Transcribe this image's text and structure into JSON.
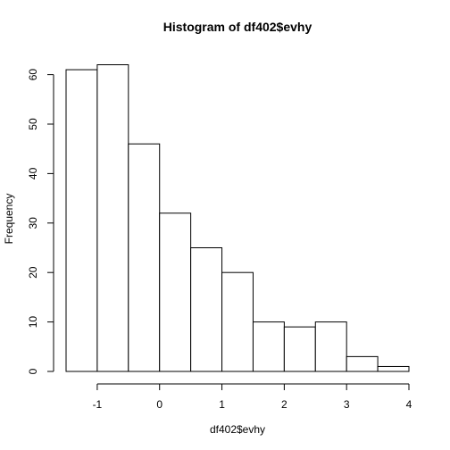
{
  "chart_data": {
    "type": "bar",
    "title": "Histogram of df402$evhy",
    "xlabel": "df402$evhy",
    "ylabel": "Frequency",
    "bins": [
      {
        "from": -1.5,
        "to": -1.0,
        "count": 61
      },
      {
        "from": -1.0,
        "to": -0.5,
        "count": 62
      },
      {
        "from": -0.5,
        "to": 0.0,
        "count": 46
      },
      {
        "from": 0.0,
        "to": 0.5,
        "count": 32
      },
      {
        "from": 0.5,
        "to": 1.0,
        "count": 25
      },
      {
        "from": 1.0,
        "to": 1.5,
        "count": 20
      },
      {
        "from": 1.5,
        "to": 2.0,
        "count": 10
      },
      {
        "from": 2.0,
        "to": 2.5,
        "count": 9
      },
      {
        "from": 2.5,
        "to": 3.0,
        "count": 10
      },
      {
        "from": 3.0,
        "to": 3.5,
        "count": 3
      },
      {
        "from": 3.5,
        "to": 4.0,
        "count": 1
      }
    ],
    "xlim": [
      -1.5,
      4.0
    ],
    "ylim": [
      0,
      62
    ],
    "x_ticks": [
      -1,
      0,
      1,
      2,
      3,
      4
    ],
    "x_tick_labels": [
      "-1",
      "0",
      "1",
      "2",
      "3",
      "4"
    ],
    "y_ticks": [
      0,
      10,
      20,
      30,
      40,
      50,
      60
    ],
    "y_tick_labels": [
      "0",
      "10",
      "20",
      "30",
      "40",
      "50",
      "60"
    ],
    "grid": false,
    "legend": "none"
  }
}
